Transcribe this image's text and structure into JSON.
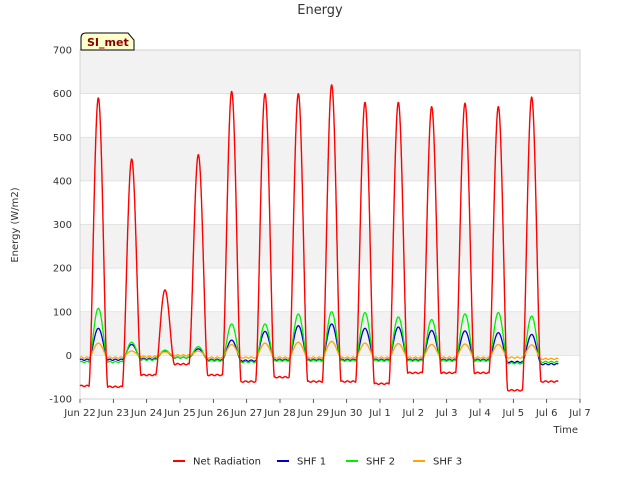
{
  "chart_data": {
    "type": "line",
    "title": "Energy",
    "xlabel": "Time",
    "ylabel": "Energy (W/m2)",
    "ylim": [
      -100,
      700
    ],
    "y_ticks": [
      -100,
      0,
      100,
      200,
      300,
      400,
      500,
      600,
      700
    ],
    "x_range_days": [
      0,
      15
    ],
    "x_ticks": [
      {
        "day": 0,
        "label": "Jun 22"
      },
      {
        "day": 1,
        "label": "Jun 23"
      },
      {
        "day": 2,
        "label": "Jun 24"
      },
      {
        "day": 3,
        "label": "Jun 25"
      },
      {
        "day": 4,
        "label": "Jun 26"
      },
      {
        "day": 5,
        "label": "Jun 27"
      },
      {
        "day": 6,
        "label": "Jun 28"
      },
      {
        "day": 7,
        "label": "Jun 29"
      },
      {
        "day": 8,
        "label": "Jun 30"
      },
      {
        "day": 9,
        "label": "Jul 1"
      },
      {
        "day": 10,
        "label": "Jul 2"
      },
      {
        "day": 11,
        "label": "Jul 3"
      },
      {
        "day": 12,
        "label": "Jul 4"
      },
      {
        "day": 13,
        "label": "Jul 5"
      },
      {
        "day": 14,
        "label": "Jul 6"
      },
      {
        "day": 15,
        "label": "Jul 7"
      }
    ],
    "site_label": "SI_met",
    "data_end_day": 14.35,
    "series": [
      {
        "name": "Net Radiation",
        "color": "#ff0000",
        "night": [
          -70,
          -72,
          -45,
          -20,
          -45,
          -60,
          -50,
          -60,
          -60,
          -65,
          -40,
          -40,
          -40,
          -80,
          -60
        ],
        "peaks": [
          590,
          450,
          150,
          460,
          605,
          600,
          600,
          620,
          580,
          580,
          570,
          578,
          570,
          592
        ]
      },
      {
        "name": "SHF 1",
        "color": "#0000cc",
        "night": [
          -10,
          -10,
          -8,
          -5,
          -10,
          -12,
          -10,
          -10,
          -10,
          -10,
          -10,
          -10,
          -10,
          -15,
          -20
        ],
        "peaks": [
          62,
          25,
          10,
          15,
          35,
          55,
          68,
          72,
          62,
          65,
          57,
          56,
          52,
          48
        ]
      },
      {
        "name": "SHF 2",
        "color": "#00ee00",
        "night": [
          -15,
          -15,
          -10,
          -5,
          -12,
          -15,
          -12,
          -12,
          -12,
          -12,
          -12,
          -12,
          -12,
          -18,
          -15
        ],
        "peaks": [
          108,
          30,
          12,
          20,
          72,
          72,
          95,
          100,
          98,
          88,
          82,
          95,
          98,
          90
        ]
      },
      {
        "name": "SHF 3",
        "color": "#ffa500",
        "night": [
          -5,
          -5,
          -3,
          0,
          -5,
          -5,
          -5,
          -5,
          -5,
          -5,
          -5,
          -5,
          -5,
          -5,
          -8
        ],
        "peaks": [
          28,
          10,
          8,
          10,
          25,
          28,
          30,
          32,
          28,
          27,
          25,
          26,
          25,
          24
        ]
      }
    ],
    "legend_position": "bottom-center"
  }
}
